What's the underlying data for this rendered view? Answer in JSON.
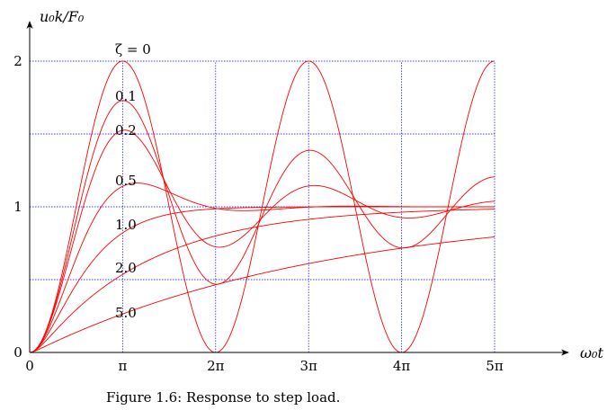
{
  "chart_data": {
    "type": "line",
    "title": "",
    "caption": "Figure 1.6: Response to step load.",
    "xlabel": "ω₀t",
    "ylabel": "u₀k/F₀",
    "xlim_pi": [
      0,
      5
    ],
    "ylim": [
      0,
      2
    ],
    "x_ticks": [
      "0",
      "π",
      "2π",
      "3π",
      "4π",
      "5π"
    ],
    "y_ticks": [
      "0",
      "1",
      "2"
    ],
    "grid": true,
    "grid_color": "#0000ff",
    "line_color": "#ff0000",
    "series": [
      {
        "name": "ζ = 0",
        "zeta": 0
      },
      {
        "name": "0.1",
        "zeta": 0.1
      },
      {
        "name": "0.2",
        "zeta": 0.2
      },
      {
        "name": "0.5",
        "zeta": 0.5
      },
      {
        "name": "1.0",
        "zeta": 1.0
      },
      {
        "name": "2.0",
        "zeta": 2.0
      },
      {
        "name": "5.0",
        "zeta": 5.0
      }
    ]
  }
}
